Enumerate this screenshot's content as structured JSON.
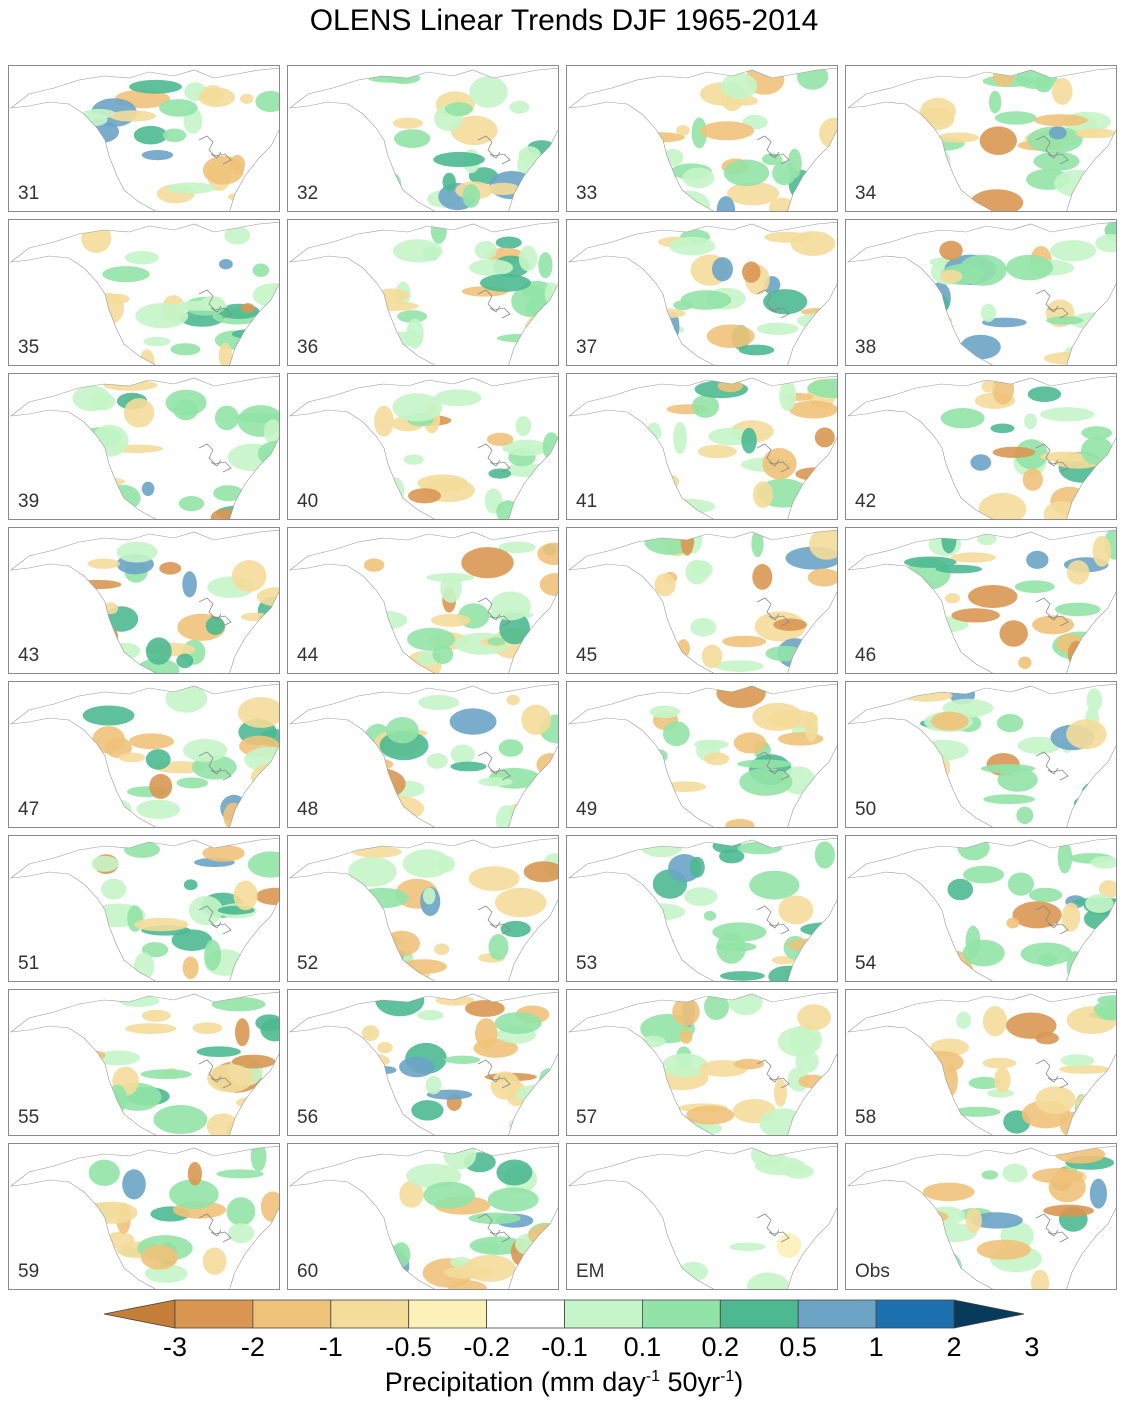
{
  "title": "OLENS Linear Trends DJF 1965-2014",
  "panels": [
    "31",
    "32",
    "33",
    "34",
    "35",
    "36",
    "37",
    "38",
    "39",
    "40",
    "41",
    "42",
    "43",
    "44",
    "45",
    "46",
    "47",
    "48",
    "49",
    "50",
    "51",
    "52",
    "53",
    "54",
    "55",
    "56",
    "57",
    "58",
    "59",
    "60",
    "EM",
    "Obs"
  ],
  "colorbar": {
    "ticks": [
      "-3",
      "-2",
      "-1",
      "-0.5",
      "-0.2",
      "-0.1",
      "0.1",
      "0.2",
      "0.5",
      "1",
      "2",
      "3"
    ],
    "colors": [
      "#c57e37",
      "#d99752",
      "#efc27a",
      "#f4dc9a",
      "#fbf1b9",
      "#ffffff",
      "#c5f5c8",
      "#92e3a7",
      "#4db991",
      "#6ca4c6",
      "#1b70ad",
      "#083a5c"
    ],
    "title_prefix": "Precipitation (mm day",
    "title_sup1": "-1",
    "title_mid": " 50yr",
    "title_sup2": "-1",
    "title_suffix": ")"
  }
}
